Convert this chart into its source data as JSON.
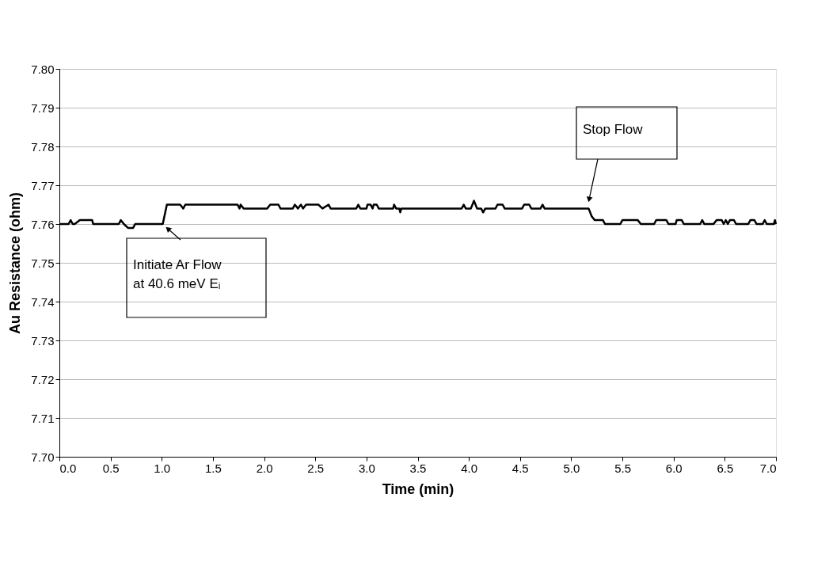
{
  "chart_data": {
    "type": "line",
    "xlabel": "Time (min)",
    "ylabel": "Au Resistance (ohm)",
    "xlim": [
      0,
      7
    ],
    "xticks": [
      {
        "value": 0,
        "label": "0.0"
      },
      {
        "value": 0.5,
        "label": "0.5"
      },
      {
        "value": 1,
        "label": "1.0"
      },
      {
        "value": 1.5,
        "label": "1.5"
      },
      {
        "value": 2,
        "label": "2.0"
      },
      {
        "value": 2.5,
        "label": "2.5"
      },
      {
        "value": 3,
        "label": "3.0"
      },
      {
        "value": 3.5,
        "label": "3.5"
      },
      {
        "value": 4,
        "label": "4.0"
      },
      {
        "value": 4.5,
        "label": "4.5"
      },
      {
        "value": 5,
        "label": "5.0"
      },
      {
        "value": 5.5,
        "label": "5.5"
      },
      {
        "value": 6,
        "label": "6.0"
      },
      {
        "value": 6.5,
        "label": "6.5"
      },
      {
        "value": 7,
        "label": "7.0"
      }
    ],
    "ylim": [
      7.7,
      7.8
    ],
    "yticks": [
      {
        "value": 7.7,
        "label": "7.70"
      },
      {
        "value": 7.71,
        "label": "7.71"
      },
      {
        "value": 7.72,
        "label": "7.72"
      },
      {
        "value": 7.73,
        "label": "7.73"
      },
      {
        "value": 7.74,
        "label": "7.74"
      },
      {
        "value": 7.75,
        "label": "7.75"
      },
      {
        "value": 7.76,
        "label": "7.76"
      },
      {
        "value": 7.77,
        "label": "7.77"
      },
      {
        "value": 7.78,
        "label": "7.78"
      },
      {
        "value": 7.79,
        "label": "7.79"
      },
      {
        "value": 7.8,
        "label": "7.80"
      }
    ],
    "grid": "y",
    "marker": "none",
    "line_style": "solid",
    "series": [
      {
        "color": "#000000",
        "x": [
          0,
          0.09,
          0.11,
          0.13,
          0.15,
          0.2,
          0.32,
          0.33,
          0.58,
          0.6,
          0.63,
          0.67,
          0.72,
          0.74,
          1.01,
          1.05,
          1.18,
          1.21,
          1.23,
          1.74,
          1.76,
          1.77,
          1.8,
          2.03,
          2.06,
          2.14,
          2.16,
          2.28,
          2.3,
          2.33,
          2.36,
          2.38,
          2.41,
          2.46,
          2.53,
          2.57,
          2.63,
          2.65,
          2.9,
          2.92,
          2.94,
          3.0,
          3.01,
          3.04,
          3.06,
          3.07,
          3.1,
          3.12,
          3.26,
          3.27,
          3.29,
          3.32,
          3.33,
          3.34,
          3.93,
          3.95,
          3.97,
          4.02,
          4.05,
          4.08,
          4.12,
          4.14,
          4.16,
          4.26,
          4.28,
          4.33,
          4.35,
          4.52,
          4.54,
          4.59,
          4.61,
          4.7,
          4.72,
          4.74,
          5.17,
          5.2,
          5.23,
          5.31,
          5.33,
          5.48,
          5.5,
          5.65,
          5.68,
          5.81,
          5.83,
          5.93,
          5.95,
          6.02,
          6.03,
          6.08,
          6.1,
          6.26,
          6.28,
          6.3,
          6.39,
          6.42,
          6.47,
          6.49,
          6.51,
          6.53,
          6.55,
          6.59,
          6.61,
          6.73,
          6.75,
          6.79,
          6.81,
          6.87,
          6.89,
          6.91,
          6.98,
          6.99,
          7.0
        ],
        "values": [
          7.76,
          7.76,
          7.761,
          7.76,
          7.76,
          7.761,
          7.761,
          7.76,
          7.76,
          7.761,
          7.76,
          7.759,
          7.759,
          7.76,
          7.76,
          7.765,
          7.765,
          7.764,
          7.765,
          7.765,
          7.764,
          7.765,
          7.764,
          7.764,
          7.765,
          7.765,
          7.764,
          7.764,
          7.765,
          7.764,
          7.765,
          7.764,
          7.765,
          7.765,
          7.765,
          7.764,
          7.765,
          7.764,
          7.764,
          7.765,
          7.764,
          7.764,
          7.765,
          7.765,
          7.764,
          7.765,
          7.765,
          7.764,
          7.764,
          7.765,
          7.764,
          7.764,
          7.763,
          7.764,
          7.764,
          7.765,
          7.764,
          7.764,
          7.766,
          7.764,
          7.764,
          7.763,
          7.764,
          7.764,
          7.765,
          7.765,
          7.764,
          7.764,
          7.765,
          7.765,
          7.764,
          7.764,
          7.765,
          7.764,
          7.764,
          7.762,
          7.761,
          7.761,
          7.76,
          7.76,
          7.761,
          7.761,
          7.76,
          7.76,
          7.761,
          7.761,
          7.76,
          7.76,
          7.761,
          7.761,
          7.76,
          7.76,
          7.761,
          7.76,
          7.76,
          7.761,
          7.761,
          7.76,
          7.761,
          7.76,
          7.761,
          7.761,
          7.76,
          7.76,
          7.761,
          7.761,
          7.76,
          7.76,
          7.761,
          7.76,
          7.76,
          7.761,
          7.76
        ]
      }
    ],
    "annotations": [
      "Initiate Ar Flow\nat 40.6 meV Eᵢ",
      "Stop Flow"
    ]
  }
}
